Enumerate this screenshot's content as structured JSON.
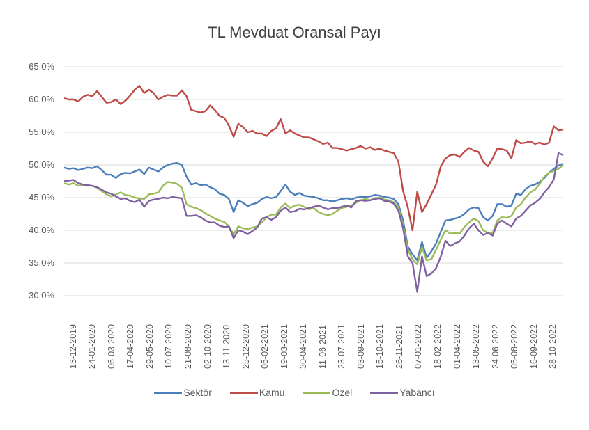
{
  "chart_data": {
    "type": "line",
    "title": "TL Mevduat Oransal Payı",
    "xlabel": "",
    "ylabel": "",
    "ylim": [
      30,
      65
    ],
    "grid": true,
    "legend_position": "bottom",
    "yticks": [
      "65,0%",
      "60,0%",
      "55,0%",
      "50,0%",
      "45,0%",
      "40,0%",
      "35,0%",
      "30,0%"
    ],
    "xticks": [
      "13-12-2019",
      "24-01-2020",
      "06-03-2020",
      "17-04-2020",
      "29-05-2020",
      "10-07-2020",
      "21-08-2020",
      "02-10-2020",
      "13-11-2020",
      "25-12-2020",
      "05-02-2021",
      "19-03-2021",
      "30-04-2021",
      "11-06-2021",
      "23-07-2021",
      "03-09-2021",
      "15-10-2021",
      "26-11-2021",
      "07-01-2022",
      "18-02-2022",
      "01-04-2022",
      "13-05-2022",
      "24-06-2022",
      "05-08-2022",
      "16-09-2022",
      "28-10-2022"
    ],
    "series": [
      {
        "name": "Sektör",
        "color": "#4a7ebb",
        "values": [
          49.6,
          49.4,
          49.5,
          49.2,
          49.4,
          49.6,
          49.5,
          49.8,
          49.2,
          48.5,
          48.5,
          48.0,
          48.6,
          48.8,
          48.7,
          49.0,
          49.3,
          48.6,
          49.6,
          49.3,
          49.0,
          49.6,
          50.0,
          50.2,
          50.3,
          50.0,
          48.2,
          47.0,
          47.2,
          46.9,
          47.0,
          46.6,
          46.3,
          45.6,
          45.4,
          44.8,
          42.8,
          44.6,
          44.2,
          43.7,
          44.0,
          44.2,
          44.8,
          45.1,
          44.9,
          45.1,
          46.0,
          47.0,
          45.9,
          45.4,
          45.7,
          45.3,
          45.2,
          45.1,
          44.9,
          44.6,
          44.6,
          44.4,
          44.6,
          44.8,
          44.9,
          44.7,
          45.0,
          45.1,
          45.1,
          45.2,
          45.4,
          45.3,
          45.1,
          45.0,
          44.8,
          44.0,
          41.5,
          37.5,
          36.3,
          35.4,
          38.2,
          35.8,
          36.8,
          38.0,
          39.8,
          41.5,
          41.6,
          41.8,
          42.0,
          42.5,
          43.2,
          43.5,
          43.4,
          42.0,
          41.5,
          42.2,
          44.0,
          44.0,
          43.6,
          43.8,
          45.6,
          45.4,
          46.3,
          46.8,
          47.0,
          47.4,
          48.0,
          48.8,
          49.4,
          49.9,
          50.2
        ]
      },
      {
        "name": "Kamu",
        "color": "#be4b48",
        "values": [
          60.2,
          60.0,
          60.0,
          59.7,
          60.4,
          60.7,
          60.5,
          61.3,
          60.4,
          59.5,
          59.6,
          60.0,
          59.3,
          59.8,
          60.6,
          61.5,
          62.1,
          61.0,
          61.5,
          61.0,
          60.0,
          60.4,
          60.7,
          60.6,
          60.6,
          61.4,
          60.5,
          58.4,
          58.2,
          58.0,
          58.2,
          59.1,
          58.4,
          57.5,
          57.2,
          56.0,
          54.3,
          56.3,
          55.8,
          55.0,
          55.2,
          54.8,
          54.8,
          54.4,
          55.2,
          55.6,
          57.0,
          54.8,
          55.3,
          54.8,
          54.5,
          54.2,
          54.2,
          53.9,
          53.6,
          53.2,
          53.4,
          52.6,
          52.6,
          52.4,
          52.2,
          52.4,
          52.6,
          52.9,
          52.5,
          52.7,
          52.3,
          52.5,
          52.2,
          52.0,
          51.8,
          50.5,
          46.0,
          43.5,
          40.0,
          45.9,
          42.8,
          44.0,
          45.5,
          47.0,
          49.8,
          51.0,
          51.5,
          51.6,
          51.2,
          52.0,
          52.6,
          52.2,
          52.0,
          50.5,
          49.8,
          51.0,
          52.5,
          52.4,
          52.2,
          51.0,
          53.8,
          53.3,
          53.4,
          53.6,
          53.2,
          53.4,
          53.1,
          53.4,
          55.9,
          55.3,
          55.4
        ]
      },
      {
        "name": "Özel",
        "color": "#9bbb59",
        "values": [
          47.2,
          47.0,
          47.2,
          46.8,
          46.9,
          46.8,
          46.8,
          46.5,
          46.0,
          45.5,
          45.2,
          45.5,
          45.8,
          45.4,
          45.3,
          45.0,
          44.9,
          44.8,
          45.5,
          45.6,
          45.8,
          46.8,
          47.4,
          47.3,
          47.1,
          46.5,
          44.0,
          43.6,
          43.4,
          43.1,
          42.6,
          42.2,
          41.8,
          41.5,
          41.3,
          40.6,
          39.4,
          40.6,
          40.3,
          40.2,
          40.4,
          40.6,
          41.2,
          42.0,
          42.4,
          42.4,
          43.5,
          44.1,
          43.4,
          43.8,
          43.9,
          43.6,
          43.2,
          43.4,
          42.8,
          42.5,
          42.3,
          42.5,
          43.0,
          43.4,
          43.6,
          43.8,
          44.2,
          44.6,
          44.8,
          44.6,
          44.9,
          45.0,
          44.7,
          44.6,
          44.3,
          43.5,
          40.8,
          37.0,
          35.6,
          34.8,
          37.4,
          35.4,
          35.6,
          37.0,
          38.6,
          40.0,
          39.5,
          39.6,
          39.5,
          40.5,
          41.2,
          41.8,
          41.4,
          40.0,
          39.6,
          39.6,
          41.5,
          42.0,
          41.9,
          42.2,
          43.5,
          44.0,
          45.0,
          45.8,
          46.2,
          47.1,
          48.2,
          48.8,
          49.1,
          49.4,
          50.0
        ]
      },
      {
        "name": "Yabancı",
        "color": "#7f60a0",
        "values": [
          47.5,
          47.6,
          47.7,
          47.2,
          47.0,
          46.9,
          46.8,
          46.6,
          46.2,
          45.8,
          45.6,
          45.2,
          44.8,
          44.9,
          44.5,
          44.3,
          44.7,
          43.6,
          44.5,
          44.7,
          44.8,
          45.0,
          44.9,
          45.1,
          45.0,
          44.9,
          42.2,
          42.2,
          42.3,
          42.0,
          41.5,
          41.2,
          41.2,
          40.7,
          40.5,
          40.6,
          38.8,
          40.0,
          39.8,
          39.4,
          39.9,
          40.4,
          41.8,
          42.0,
          41.6,
          42.0,
          43.0,
          43.5,
          42.8,
          42.9,
          43.3,
          43.2,
          43.4,
          43.6,
          43.8,
          43.5,
          43.2,
          43.4,
          43.4,
          43.6,
          43.8,
          43.5,
          44.5,
          44.6,
          44.5,
          44.6,
          44.8,
          44.9,
          44.5,
          44.4,
          44.1,
          43.0,
          40.3,
          36.0,
          35.0,
          30.6,
          36.0,
          33.0,
          33.4,
          34.2,
          36.0,
          38.4,
          37.6,
          38.0,
          38.3,
          39.2,
          40.3,
          41.0,
          40.0,
          39.3,
          39.6,
          39.2,
          41.0,
          41.5,
          41.0,
          40.6,
          41.8,
          42.2,
          43.0,
          43.8,
          44.2,
          44.8,
          45.8,
          46.6,
          47.8,
          51.8,
          51.5
        ]
      }
    ]
  }
}
